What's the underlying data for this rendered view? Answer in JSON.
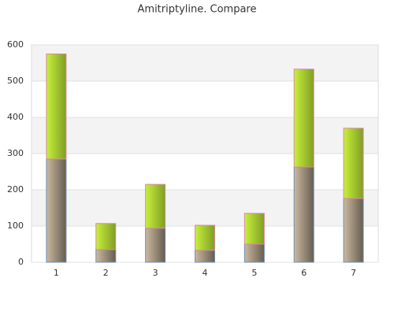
{
  "chart_data": {
    "type": "stacked_bar",
    "title": "Amitriptyline. Compare",
    "categories": [
      "1",
      "2",
      "3",
      "4",
      "5",
      "6",
      "7"
    ],
    "series": [
      {
        "color": "#cbb9a0",
        "values": [
          285,
          35,
          94,
          33,
          50,
          263,
          176
        ]
      },
      {
        "color": "#c6f13a",
        "values": [
          290,
          72,
          121,
          69,
          85,
          270,
          194
        ]
      }
    ],
    "ylim": [
      0,
      600
    ],
    "yticks": [
      0,
      100,
      200,
      300,
      400,
      500,
      600
    ],
    "grid": true
  }
}
